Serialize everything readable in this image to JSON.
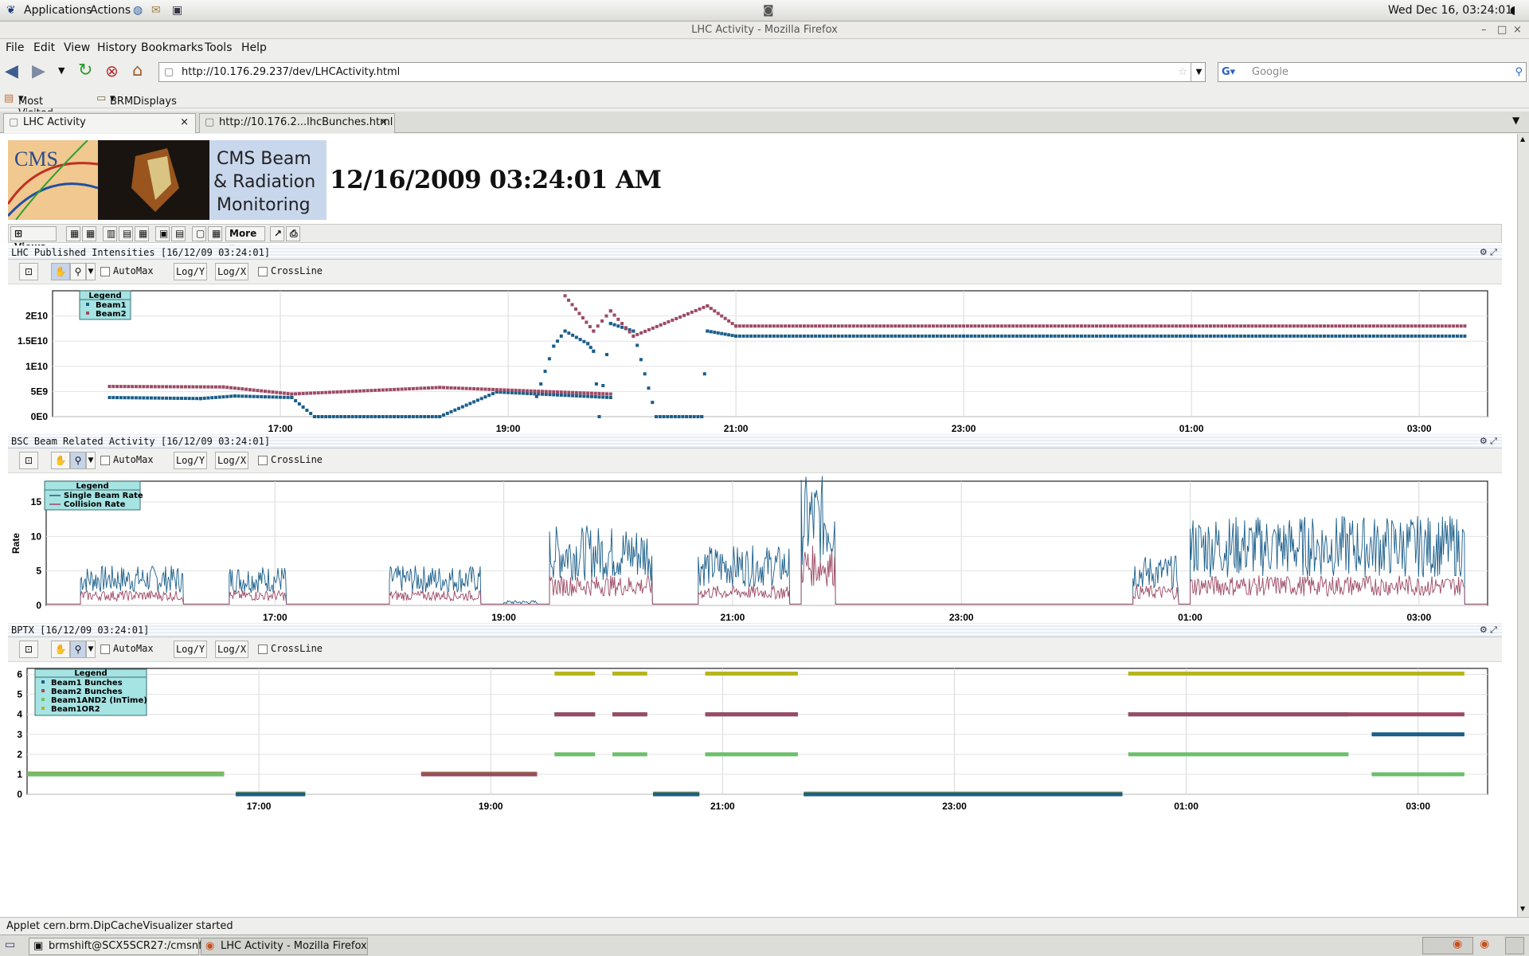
{
  "sysbar": {
    "applications": "Applications",
    "actions": "Actions",
    "datetime": "Wed Dec 16, 03:24:01"
  },
  "window": {
    "title": "LHC Activity - Mozilla Firefox"
  },
  "menu": [
    "File",
    "Edit",
    "View",
    "History",
    "Bookmarks",
    "Tools",
    "Help"
  ],
  "nav": {
    "url": "http://10.176.29.237/dev/LHCActivity.html",
    "search_placeholder": "Google"
  },
  "bookmarks": {
    "most_visited": "Most Visited",
    "brm": "BRMDisplays"
  },
  "tabs": [
    {
      "label": "LHC Activity"
    },
    {
      "label": "http://10.176.2...lhcBunches.html"
    }
  ],
  "header": {
    "logo_text": "CMS",
    "brand_line1": "CMS Beam",
    "brand_line2": "& Radiation",
    "brand_line3": "Monitoring",
    "timestamp": "12/16/2009 03:24:01 AM"
  },
  "viewsbar": {
    "views": "Views",
    "more": "More"
  },
  "toolbar": {
    "automax": "AutoMax",
    "logy": "Log/Y",
    "logx": "Log/X",
    "crossline": "CrossLine"
  },
  "colors": {
    "beam1": "#1a5e8a",
    "beam2": "#9c4a64",
    "and": "#6cbf6c",
    "or": "#b5b51e",
    "legend_bg": "#a6e3e3"
  },
  "chart_data": [
    {
      "type": "scatter",
      "panel_title": "LHC Published Intensities  [16/12/09 03:24:01]",
      "xticks": [
        "17:00",
        "19:00",
        "21:00",
        "23:00",
        "01:00",
        "03:00"
      ],
      "yticks": [
        "0E0",
        "5E9",
        "1E10",
        "1.5E10",
        "2E10"
      ],
      "ylim": [
        0,
        25000000000.0
      ],
      "legend": [
        "Beam1",
        "Beam2"
      ],
      "series": [
        {
          "name": "Beam1",
          "points": [
            [
              15.5,
              3800000000.0
            ],
            [
              16.3,
              3600000000.0
            ],
            [
              16.6,
              4100000000.0
            ],
            [
              17.1,
              3800000000.0
            ],
            [
              17.3,
              0
            ],
            [
              18.4,
              0
            ],
            [
              18.9,
              4900000000.0
            ],
            [
              19.9,
              3800000000.0
            ],
            [
              19.25,
              4000000000.0
            ],
            [
              19.4,
              14000000000.0
            ],
            [
              19.5,
              17000000000.0
            ],
            [
              19.7,
              14500000000.0
            ],
            [
              19.75,
              13000000000.0
            ],
            [
              19.8,
              0
            ],
            [
              19.9,
              18500000000.0
            ],
            [
              20.1,
              17000000000.0
            ],
            [
              20.3,
              0
            ],
            [
              20.7,
              0
            ],
            [
              20.75,
              17000000000.0
            ],
            [
              21.0,
              16000000000.0
            ],
            [
              23.0,
              16000000000.0
            ],
            [
              1.0,
              16000000000.0
            ],
            [
              3.4,
              16000000000.0
            ]
          ]
        },
        {
          "name": "Beam2",
          "points": [
            [
              15.5,
              6000000000.0
            ],
            [
              16.5,
              5900000000.0
            ],
            [
              17.1,
              4500000000.0
            ],
            [
              18.4,
              5800000000.0
            ],
            [
              19.9,
              4500000000.0
            ],
            [
              19.5,
              24000000000.0
            ],
            [
              19.75,
              17000000000.0
            ],
            [
              19.9,
              21000000000.0
            ],
            [
              20.1,
              16000000000.0
            ],
            [
              20.75,
              22000000000.0
            ],
            [
              21.0,
              18000000000.0
            ],
            [
              3.4,
              18000000000.0
            ]
          ]
        }
      ]
    },
    {
      "type": "line",
      "panel_title": "BSC Beam Related Activity  [16/12/09 03:24:01]",
      "ylabel": "Rate",
      "xticks": [
        "17:00",
        "19:00",
        "21:00",
        "23:00",
        "01:00",
        "03:00"
      ],
      "yticks": [
        "0",
        "5",
        "10",
        "15"
      ],
      "ylim": [
        0,
        18
      ],
      "legend": [
        "Single Beam Rate",
        "Collision Rate"
      ],
      "series": [
        {
          "name": "Single Beam Rate",
          "segments": [
            [
              15.3,
              16.2,
              4
            ],
            [
              16.6,
              17.1,
              4
            ],
            [
              18.0,
              18.8,
              4
            ],
            [
              19.0,
              19.3,
              0.5
            ],
            [
              19.4,
              20.3,
              8
            ],
            [
              20.7,
              21.5,
              6
            ],
            [
              21.6,
              21.9,
              13
            ],
            [
              0.5,
              0.9,
              5
            ],
            [
              1.0,
              3.4,
              9
            ]
          ]
        },
        {
          "name": "Collision Rate",
          "segments": [
            [
              15.3,
              16.2,
              1.5
            ],
            [
              16.6,
              17.1,
              1.5
            ],
            [
              18.0,
              18.8,
              1.5
            ],
            [
              19.4,
              20.3,
              3
            ],
            [
              20.7,
              21.5,
              2
            ],
            [
              21.6,
              21.9,
              6
            ],
            [
              0.5,
              0.9,
              2
            ],
            [
              1.0,
              3.4,
              3
            ]
          ]
        }
      ]
    },
    {
      "type": "scatter",
      "panel_title": "BPTX  [16/12/09 03:24:01]",
      "xticks": [
        "17:00",
        "19:00",
        "21:00",
        "23:00",
        "01:00",
        "03:00"
      ],
      "yticks": [
        "0",
        "1",
        "2",
        "3",
        "4",
        "5",
        "6"
      ],
      "ylim": [
        0,
        6.3
      ],
      "legend": [
        "Beam1 Bunches",
        "Beam2 Bunches",
        "Beam1AND2 (InTime)",
        "Beam1OR2"
      ],
      "series": [
        {
          "name": "Beam1 Bunches",
          "levels": [
            [
              15.0,
              16.7,
              1
            ],
            [
              16.8,
              17.4,
              0
            ],
            [
              18.4,
              19.4,
              1
            ],
            [
              19.55,
              19.9,
              4
            ],
            [
              20.05,
              20.35,
              4
            ],
            [
              20.4,
              20.8,
              0
            ],
            [
              20.85,
              21.65,
              4
            ],
            [
              21.7,
              0.45,
              0
            ],
            [
              0.5,
              2.4,
              4
            ],
            [
              2.6,
              3.4,
              3
            ]
          ]
        },
        {
          "name": "Beam2 Bunches",
          "levels": [
            [
              15.0,
              16.7,
              1
            ],
            [
              18.4,
              19.4,
              1
            ],
            [
              19.55,
              19.9,
              4
            ],
            [
              20.05,
              20.35,
              4
            ],
            [
              20.85,
              21.65,
              4
            ],
            [
              0.5,
              3.4,
              4
            ]
          ]
        },
        {
          "name": "Beam1AND2 (InTime)",
          "levels": [
            [
              15.0,
              16.7,
              1
            ],
            [
              19.55,
              19.9,
              2
            ],
            [
              20.05,
              20.35,
              2
            ],
            [
              20.85,
              21.65,
              2
            ],
            [
              0.5,
              2.4,
              2
            ],
            [
              2.6,
              3.4,
              1
            ]
          ]
        },
        {
          "name": "Beam1OR2",
          "levels": [
            [
              15.0,
              16.7,
              1
            ],
            [
              16.8,
              17.4,
              0
            ],
            [
              18.4,
              19.4,
              1
            ],
            [
              19.55,
              19.9,
              6
            ],
            [
              20.05,
              20.35,
              6
            ],
            [
              20.4,
              20.8,
              0
            ],
            [
              20.85,
              21.65,
              6
            ],
            [
              21.7,
              0.45,
              0
            ],
            [
              0.5,
              3.4,
              6
            ]
          ]
        }
      ]
    }
  ],
  "status": "Applet cern.brm.DipCacheVisualizer started",
  "taskbar": {
    "term": "brmshift@SCX5SCR27:/cmsnf",
    "ff": "LHC Activity - Mozilla Firefox"
  }
}
